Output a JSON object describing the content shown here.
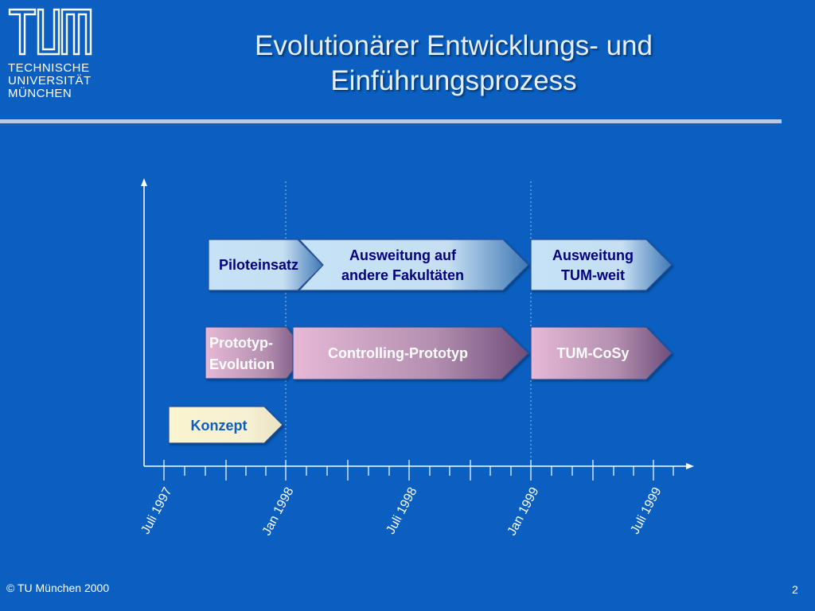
{
  "logo": {
    "lines": [
      "TECHNISCHE",
      "UNIVERSITÄT",
      "MÜNCHEN"
    ]
  },
  "title": {
    "line1": "Evolutionärer Entwicklungs- und",
    "line2": "Einführungsprozess"
  },
  "timeline": {
    "ticks": [
      "Juli 1997",
      "Jan 1998",
      "Juli 1998",
      "Jan 1999",
      "Juli 1999"
    ]
  },
  "phases": {
    "row1": {
      "a": "Piloteinsatz",
      "b": [
        "Ausweitung auf",
        "andere Fakultäten"
      ],
      "c": [
        "Ausweitung",
        "TUM-weit"
      ]
    },
    "row2": {
      "a": [
        "Prototyp-",
        "Evolution"
      ],
      "b": "Controlling-Prototyp",
      "c": "TUM-CoSy"
    },
    "row3": {
      "a": "Konzept"
    }
  },
  "colors": {
    "background": "#0a5fc0",
    "phase_text": "#000080",
    "concept_text": "#0a5fc0"
  },
  "footer": {
    "copyright": "© TU München 2000",
    "page": "2"
  }
}
